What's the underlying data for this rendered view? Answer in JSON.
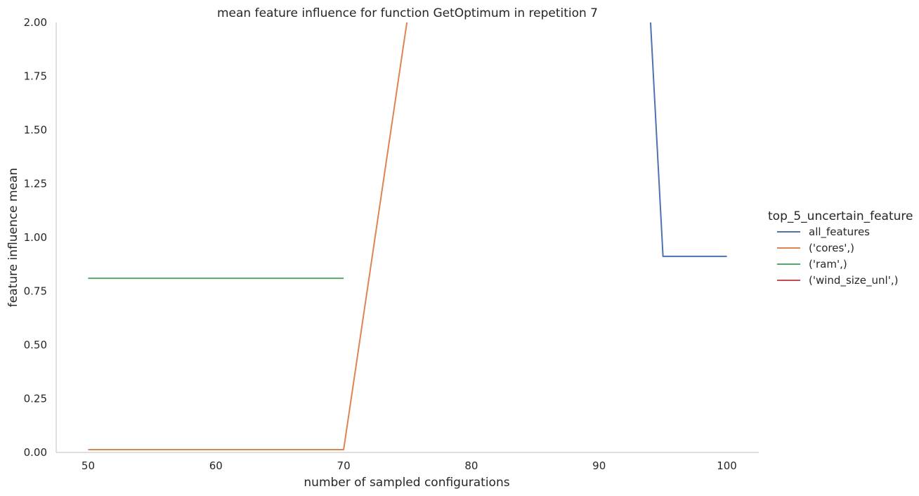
{
  "chart_data": {
    "type": "line",
    "title": "mean feature influence for function GetOptimum in repetition 7",
    "xlabel": "number of sampled configurations",
    "ylabel": "feature influence mean",
    "xlim": [
      47.5,
      102.5
    ],
    "ylim": [
      0,
      2.0
    ],
    "xticks": [
      50,
      60,
      70,
      80,
      90,
      100
    ],
    "yticks": [
      0.0,
      0.25,
      0.5,
      0.75,
      1.0,
      1.25,
      1.5,
      1.75,
      2.0
    ],
    "xtick_labels": [
      "50",
      "60",
      "70",
      "80",
      "90",
      "100"
    ],
    "ytick_labels": [
      "0.00",
      "0.25",
      "0.50",
      "0.75",
      "1.00",
      "1.25",
      "1.50",
      "1.75",
      "2.00"
    ],
    "grid": false,
    "legend_title": "top_5_uncertain_feature",
    "legend_position": "right",
    "series": [
      {
        "name": "all_features",
        "color": "#4c72b0",
        "points": [
          [
            94,
            2.03
          ],
          [
            95,
            0.912
          ],
          [
            100,
            0.912
          ]
        ]
      },
      {
        "name": "('cores',)",
        "color": "#dd8452",
        "points": [
          [
            50,
            0.013
          ],
          [
            70,
            0.013
          ],
          [
            75,
            2.02
          ]
        ]
      },
      {
        "name": "('ram',)",
        "color": "#55a868",
        "points": [
          [
            50,
            0.81
          ],
          [
            70,
            0.81
          ]
        ]
      },
      {
        "name": "('wind_size_unl',)",
        "color": "#c44e52",
        "points": []
      }
    ]
  }
}
